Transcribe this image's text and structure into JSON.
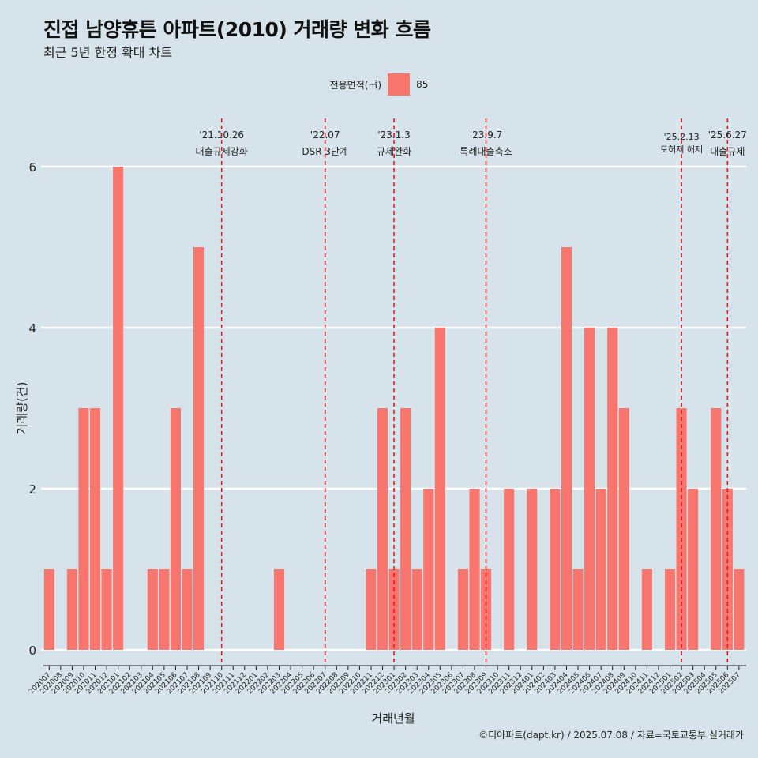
{
  "title": "진접 남양휴튼 아파트(2010) 거래량 변화 흐름",
  "subtitle": "최근 5년 한정 확대 차트",
  "legend": {
    "title": "전용면적(㎡)",
    "item": "85",
    "color": "#f8766d"
  },
  "caption": "©디아파트(dapt.kr) / 2025.07.08 / 자료=국토교통부 실거래가",
  "chart_data": {
    "type": "bar",
    "xlabel": "거래년월",
    "ylabel": "거래량(건)",
    "ylim": [
      0,
      6
    ],
    "yticks": [
      0,
      2,
      4,
      6
    ],
    "grid": true,
    "legend_position": "top",
    "categories": [
      "202007",
      "202008",
      "202009",
      "202010",
      "202011",
      "202012",
      "202101",
      "202102",
      "202103",
      "202104",
      "202105",
      "202106",
      "202107",
      "202108",
      "202109",
      "202110",
      "202111",
      "202112",
      "202201",
      "202202",
      "202203",
      "202204",
      "202205",
      "202206",
      "202207",
      "202208",
      "202209",
      "202210",
      "202211",
      "202212",
      "202301",
      "202302",
      "202303",
      "202304",
      "202305",
      "202306",
      "202307",
      "202308",
      "202309",
      "202310",
      "202311",
      "202312",
      "202401",
      "202402",
      "202403",
      "202404",
      "202405",
      "202406",
      "202407",
      "202408",
      "202409",
      "202410",
      "202411",
      "202412",
      "202501",
      "202502",
      "202503",
      "202504",
      "202505",
      "202506",
      "202507"
    ],
    "series": [
      {
        "name": "85",
        "color": "#f8766d",
        "values": [
          1,
          0,
          1,
          3,
          3,
          1,
          6,
          0,
          0,
          1,
          1,
          3,
          1,
          5,
          0,
          0,
          0,
          0,
          0,
          0,
          1,
          0,
          0,
          0,
          0,
          0,
          0,
          0,
          1,
          3,
          1,
          3,
          1,
          2,
          4,
          0,
          1,
          2,
          1,
          0,
          2,
          0,
          2,
          0,
          2,
          5,
          1,
          4,
          2,
          4,
          3,
          0,
          1,
          0,
          1,
          3,
          2,
          0,
          3,
          2,
          1
        ]
      }
    ],
    "annotations": [
      {
        "date": "'21.10.26",
        "label": "대출규제강화",
        "at": "202110"
      },
      {
        "date": "'22.07",
        "label": "DSR 3단계",
        "at": "202207"
      },
      {
        "date": "'23.1.3",
        "label": "규제완화",
        "at": "202301"
      },
      {
        "date": "'23.9.7",
        "label": "특례대출축소",
        "at": "202309"
      },
      {
        "date": "'25.2.13",
        "label": "토허제 해제",
        "at": "202502"
      },
      {
        "date": "'25.6.27",
        "label": "대출규제",
        "at": "202506"
      }
    ]
  }
}
